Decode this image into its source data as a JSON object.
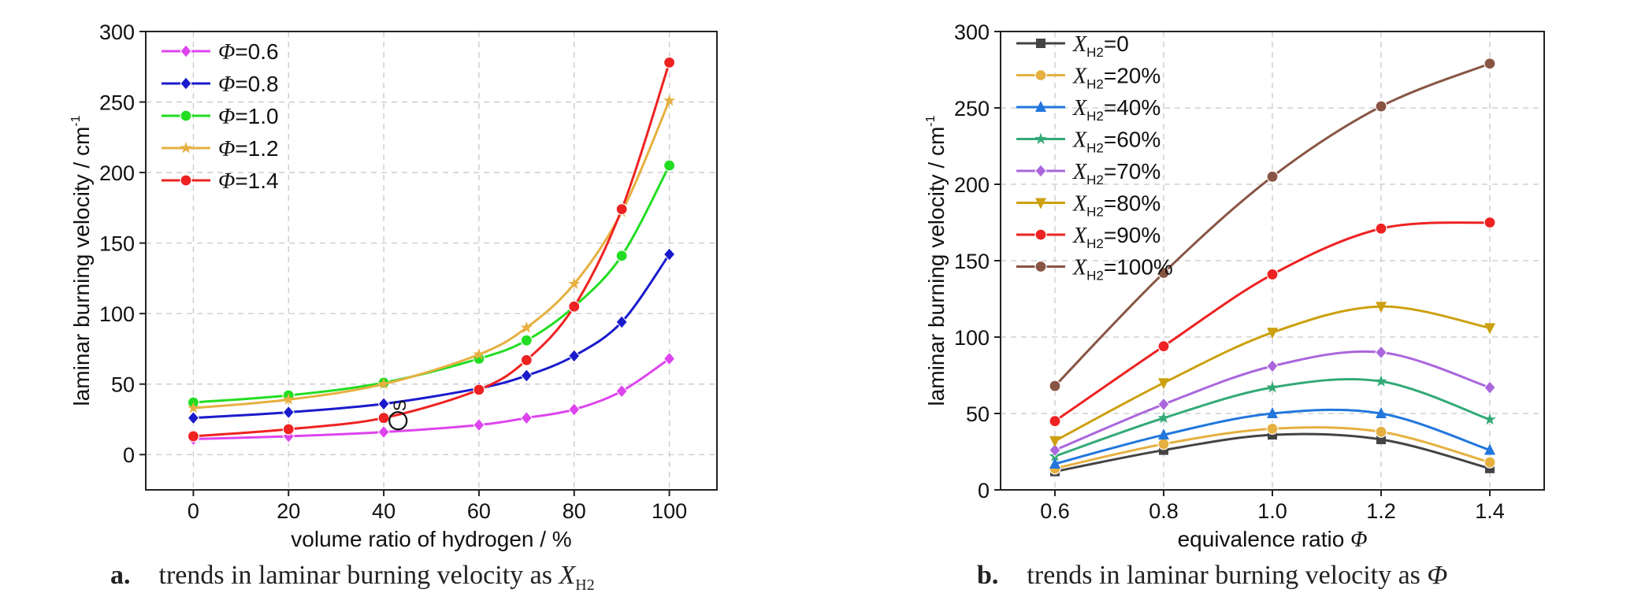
{
  "chart_data": [
    {
      "id": "a",
      "type": "line",
      "ylabel": "laminar burning velocity / cm",
      "ylabel_sup": "-1",
      "xlabel": "volume ratio of hydrogen / %",
      "xlim": [
        -10,
        110
      ],
      "ylim": [
        -25,
        300
      ],
      "xticks": [
        0,
        20,
        40,
        60,
        80,
        100
      ],
      "yticks": [
        0,
        50,
        100,
        150,
        200,
        250,
        300
      ],
      "grid": true,
      "legend_position": "top-left",
      "annotation": {
        "text": "S",
        "x": 43,
        "y": 24
      },
      "x": [
        0,
        20,
        40,
        60,
        70,
        80,
        90,
        100
      ],
      "series": [
        {
          "name": "=0.6",
          "symbol": "Φ",
          "color": "#dd44ee",
          "marker": "diamond",
          "values": [
            11,
            13,
            16,
            21,
            26,
            32,
            45,
            68
          ]
        },
        {
          "name": "=0.8",
          "symbol": "Φ",
          "color": "#1a1acc",
          "marker": "diamond",
          "values": [
            26,
            30,
            36,
            47,
            56,
            70,
            94,
            142
          ]
        },
        {
          "name": "=1.0",
          "symbol": "Φ",
          "color": "#22dd22",
          "marker": "circle",
          "values": [
            37,
            42,
            51,
            68,
            81,
            105,
            141,
            205
          ]
        },
        {
          "name": "=1.2",
          "symbol": "Φ",
          "color": "#e6b040",
          "marker": "star",
          "values": [
            33,
            39,
            50,
            71,
            90,
            121,
            172,
            251
          ]
        },
        {
          "name": "=1.4",
          "symbol": "Φ",
          "color": "#ee2222",
          "marker": "circle",
          "values": [
            13,
            18,
            26,
            46,
            67,
            105,
            174,
            278
          ]
        }
      ]
    },
    {
      "id": "b",
      "type": "line",
      "ylabel": "laminar burning velocity / cm",
      "ylabel_sup": "-1",
      "xlabel": "equivalence ratio ",
      "xlabel_symbol": "Φ",
      "xlim": [
        0.5,
        1.5
      ],
      "ylim": [
        0,
        300
      ],
      "xticks": [
        "0.6",
        "0.8",
        "1.0",
        "1.2",
        "1.4"
      ],
      "xtick_values": [
        0.6,
        0.8,
        1.0,
        1.2,
        1.4
      ],
      "yticks": [
        0,
        50,
        100,
        150,
        200,
        250,
        300
      ],
      "grid": true,
      "legend_position": "top-left",
      "x": [
        0.6,
        0.8,
        1.0,
        1.2,
        1.4
      ],
      "series": [
        {
          "name": "=0",
          "symbol": "X",
          "sub": "H2",
          "color": "#444444",
          "marker": "square",
          "values": [
            12,
            26,
            36,
            33,
            14
          ]
        },
        {
          "name": "=20%",
          "symbol": "X",
          "sub": "H2",
          "color": "#e6b040",
          "marker": "circle",
          "values": [
            14,
            30,
            40,
            38,
            18
          ]
        },
        {
          "name": "=40%",
          "symbol": "X",
          "sub": "H2",
          "color": "#2277dd",
          "marker": "triangle",
          "values": [
            17,
            36,
            50,
            50,
            26
          ]
        },
        {
          "name": "=60%",
          "symbol": "X",
          "sub": "H2",
          "color": "#33aa77",
          "marker": "star",
          "values": [
            22,
            47,
            67,
            71,
            46
          ]
        },
        {
          "name": "=70%",
          "symbol": "X",
          "sub": "H2",
          "color": "#aa66dd",
          "marker": "diamond",
          "values": [
            26,
            56,
            81,
            90,
            67
          ]
        },
        {
          "name": "=80%",
          "symbol": "X",
          "sub": "H2",
          "color": "#cca010",
          "marker": "triangle-down",
          "values": [
            32,
            70,
            103,
            120,
            106
          ]
        },
        {
          "name": "=90%",
          "symbol": "X",
          "sub": "H2",
          "color": "#ee2222",
          "marker": "circle",
          "values": [
            45,
            94,
            141,
            171,
            175
          ]
        },
        {
          "name": "=100%",
          "symbol": "X",
          "sub": "H2",
          "color": "#885544",
          "marker": "circle",
          "values": [
            68,
            142,
            205,
            251,
            279
          ]
        }
      ]
    }
  ],
  "captions": {
    "a": {
      "label": "a.",
      "text": "trends in laminar burning velocity as ",
      "symbol": "X",
      "sub": "H2"
    },
    "b": {
      "label": "b.",
      "text": "trends in laminar burning velocity as ",
      "symbol": "Φ"
    }
  }
}
